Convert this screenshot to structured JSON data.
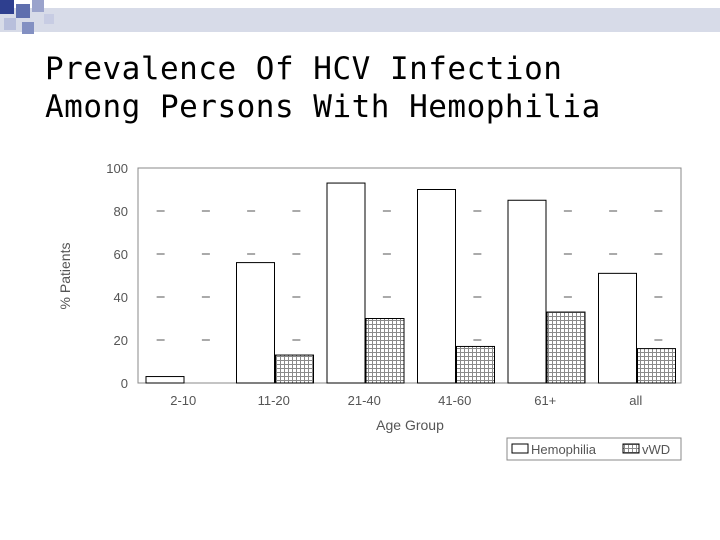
{
  "slide": {
    "title_line1": "Prevalence Of HCV Infection",
    "title_line2": "Among Persons With Hemophilia",
    "accent_color": "#2e3f8f"
  },
  "chart_data": {
    "type": "bar",
    "title": "",
    "xlabel": "Age Group",
    "ylabel": "% Patients",
    "categories": [
      "2-10",
      "11-20",
      "21-40",
      "41-60",
      "61+",
      "all"
    ],
    "series": [
      {
        "name": "Hemophilia",
        "values": [
          3,
          56,
          93,
          90,
          85,
          51
        ],
        "pattern": "open"
      },
      {
        "name": "vWD",
        "values": [
          0,
          13,
          30,
          17,
          33,
          16
        ],
        "pattern": "cross-hatched"
      }
    ],
    "ylim": [
      0,
      100
    ],
    "yticks": [
      0,
      20,
      40,
      60,
      80,
      100
    ],
    "grid": "dashed",
    "legend": "bottom-right"
  }
}
